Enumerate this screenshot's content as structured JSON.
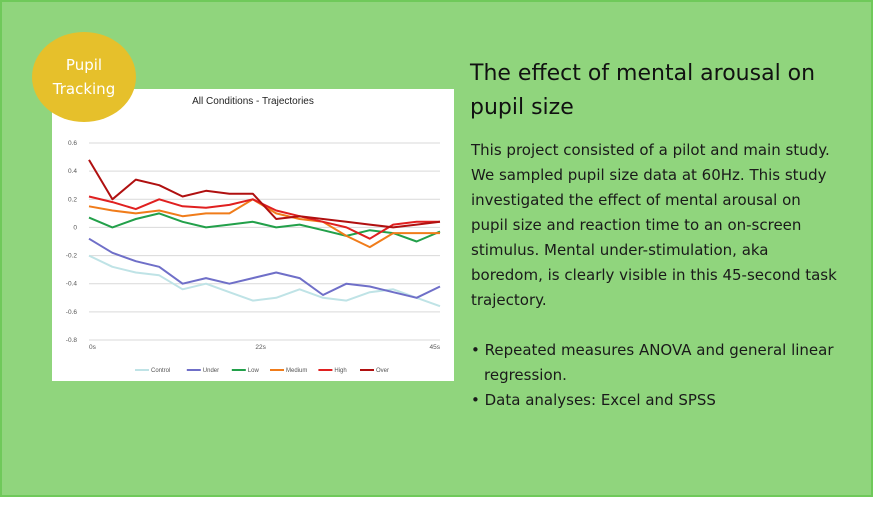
{
  "badge": {
    "line1": "Pupil",
    "line2": "Tracking"
  },
  "heading": "The effect of mental arousal on pupil size",
  "description": "This project consisted of a pilot and main study. We sampled pupil size data at 60Hz. This study investigated the effect of mental arousal on pupil size and reaction time to an on-screen stimulus. Mental under-stimulation, aka boredom, is clearly visible in this 45-second task trajectory.",
  "bullets": [
    "Repeated measures ANOVA and general linear regression.",
    "Data analyses: Excel and SPSS"
  ],
  "chart_data": {
    "type": "line",
    "title": "All Conditions - Trajectories",
    "xlabel": "",
    "ylabel": "",
    "xlim": [
      0,
      45
    ],
    "ylim": [
      -0.8,
      0.6
    ],
    "yticks": [
      "0.6",
      "0.4",
      "0.2",
      "0",
      "-0.2",
      "-0.4",
      "-0.6",
      "-0.8"
    ],
    "ytick_values": [
      0.6,
      0.4,
      0.2,
      0,
      -0.2,
      -0.4,
      -0.6,
      -0.8
    ],
    "xticks": [
      "0s",
      "22s",
      "45s"
    ],
    "xtick_values": [
      0,
      22,
      45
    ],
    "grid": true,
    "legend_position": "bottom",
    "x": [
      0,
      3,
      6,
      9,
      12,
      15,
      18,
      21,
      24,
      27,
      30,
      33,
      36,
      39,
      42,
      45
    ],
    "series": [
      {
        "name": "Control",
        "color": "#bfe3e6",
        "values": [
          -0.2,
          -0.28,
          -0.32,
          -0.34,
          -0.44,
          -0.4,
          -0.46,
          -0.52,
          -0.5,
          -0.44,
          -0.5,
          -0.52,
          -0.46,
          -0.44,
          -0.5,
          -0.56
        ]
      },
      {
        "name": "Under",
        "color": "#6f6fc8",
        "values": [
          -0.08,
          -0.18,
          -0.24,
          -0.28,
          -0.4,
          -0.36,
          -0.4,
          -0.36,
          -0.32,
          -0.36,
          -0.48,
          -0.4,
          -0.42,
          -0.46,
          -0.5,
          -0.42
        ]
      },
      {
        "name": "Low",
        "color": "#22a04a",
        "values": [
          0.07,
          0.0,
          0.06,
          0.1,
          0.04,
          0.0,
          0.02,
          0.04,
          0.0,
          0.02,
          -0.02,
          -0.06,
          -0.02,
          -0.04,
          -0.1,
          -0.03
        ]
      },
      {
        "name": "Medium",
        "color": "#f07c1a",
        "values": [
          0.15,
          0.12,
          0.1,
          0.12,
          0.08,
          0.1,
          0.1,
          0.2,
          0.1,
          0.06,
          0.04,
          -0.06,
          -0.14,
          -0.04,
          -0.04,
          -0.04
        ]
      },
      {
        "name": "High",
        "color": "#e02020",
        "values": [
          0.22,
          0.18,
          0.13,
          0.2,
          0.15,
          0.14,
          0.16,
          0.2,
          0.12,
          0.08,
          0.04,
          0.0,
          -0.08,
          0.02,
          0.04,
          0.04
        ]
      },
      {
        "name": "Over",
        "color": "#b01010",
        "values": [
          0.48,
          0.2,
          0.34,
          0.3,
          0.22,
          0.26,
          0.24,
          0.24,
          0.06,
          0.08,
          0.06,
          0.04,
          0.02,
          0.0,
          0.02,
          0.04
        ]
      }
    ]
  }
}
